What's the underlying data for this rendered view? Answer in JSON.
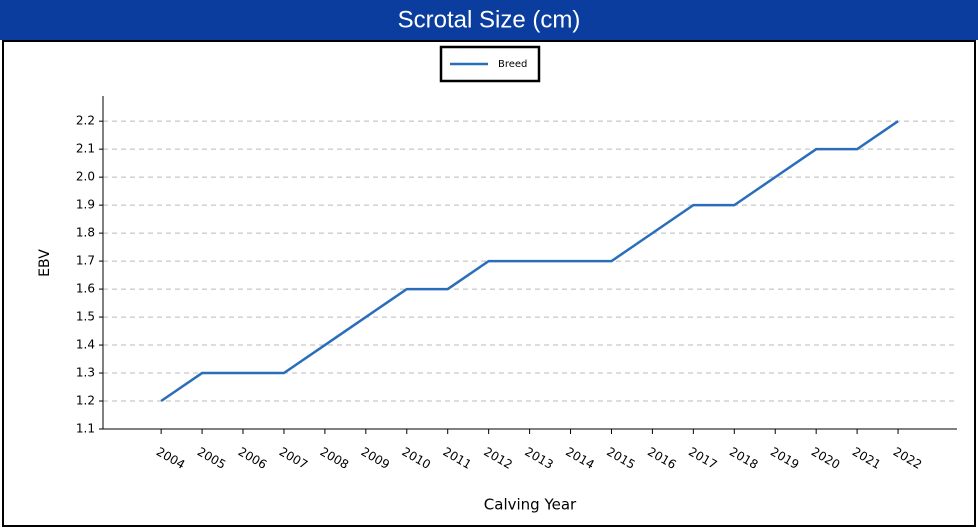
{
  "chart_data": {
    "type": "line",
    "title": "Scrotal Size (cm)",
    "x": [
      2004,
      2005,
      2006,
      2007,
      2008,
      2009,
      2010,
      2011,
      2012,
      2013,
      2014,
      2015,
      2016,
      2017,
      2018,
      2019,
      2020,
      2021,
      2022
    ],
    "series": [
      {
        "name": "Breed",
        "color": "#2a6ebb",
        "values": [
          1.2,
          1.3,
          1.3,
          1.3,
          1.4,
          1.5,
          1.6,
          1.6,
          1.7,
          1.7,
          1.7,
          1.7,
          1.8,
          1.9,
          1.9,
          2.0,
          2.1,
          2.1,
          2.2
        ]
      }
    ],
    "xlabel": "Calving Year",
    "ylabel": "EBV",
    "xlim": [
      2002.58,
      2023.44
    ],
    "xticks": [
      2004,
      2005,
      2006,
      2007,
      2008,
      2009,
      2010,
      2011,
      2012,
      2013,
      2014,
      2015,
      2016,
      2017,
      2018,
      2019,
      2020,
      2021,
      2022
    ],
    "ylim": [
      1.1,
      2.29
    ],
    "yticks": [
      1.1,
      1.2,
      1.3,
      1.4,
      1.5,
      1.6,
      1.7,
      1.8,
      1.9,
      {
        "value": 2,
        "label": "2.0"
      },
      2.1,
      2.2
    ],
    "grid": true,
    "legend": "top"
  }
}
